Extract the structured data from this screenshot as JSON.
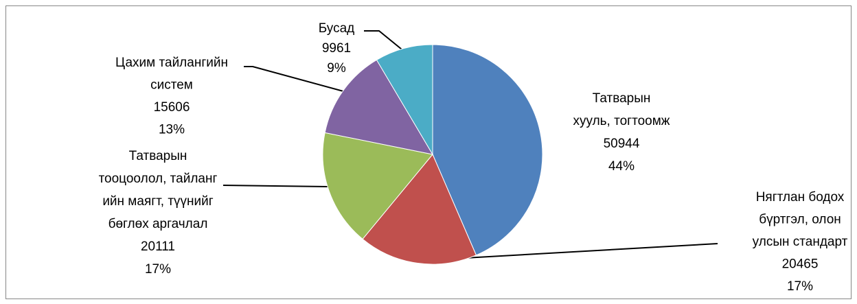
{
  "chart_data": {
    "type": "pie",
    "categories": [
      [
        "Татварын",
        "хууль, тогтоомж"
      ],
      [
        "Нягтлан бодох",
        "бүртгэл, олон",
        "улсын стандарт"
      ],
      [
        "Татварын",
        "тооцоолол, тайланг",
        "ийн маягт, түүнийг",
        "бөглөх аргачлал"
      ],
      [
        "Цахим тайлангийн",
        "систем"
      ],
      [
        "Бусад"
      ]
    ],
    "values": [
      50944,
      20465,
      20111,
      15606,
      9961
    ],
    "value_labels": [
      "44%",
      "17%",
      "17%",
      "13%",
      "9%"
    ],
    "colors": [
      "#4f81bd",
      "#c0504d",
      "#9bbb59",
      "#8064a2",
      "#4bacc6"
    ]
  }
}
